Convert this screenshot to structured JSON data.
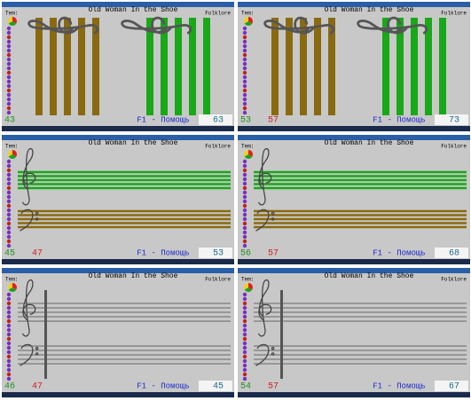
{
  "title": "Old Woman In the Shoe",
  "theme_label": "Tem:",
  "genre": "Folklore",
  "help": "F1 - Помощь",
  "panels": [
    {
      "view": "stripes",
      "left_number": "43",
      "score": "63"
    },
    {
      "view": "stripes",
      "left_number": "53",
      "red_number": "57",
      "score": "73"
    },
    {
      "view": "staves",
      "left_number": "45",
      "red_number": "47",
      "score": "53"
    },
    {
      "view": "staves",
      "left_number": "56",
      "red_number": "57",
      "score": "68"
    },
    {
      "view": "barline",
      "left_number": "46",
      "red_number": "47",
      "score": "45"
    },
    {
      "view": "barline",
      "left_number": "54",
      "red_number": "57",
      "score": "67"
    }
  ]
}
